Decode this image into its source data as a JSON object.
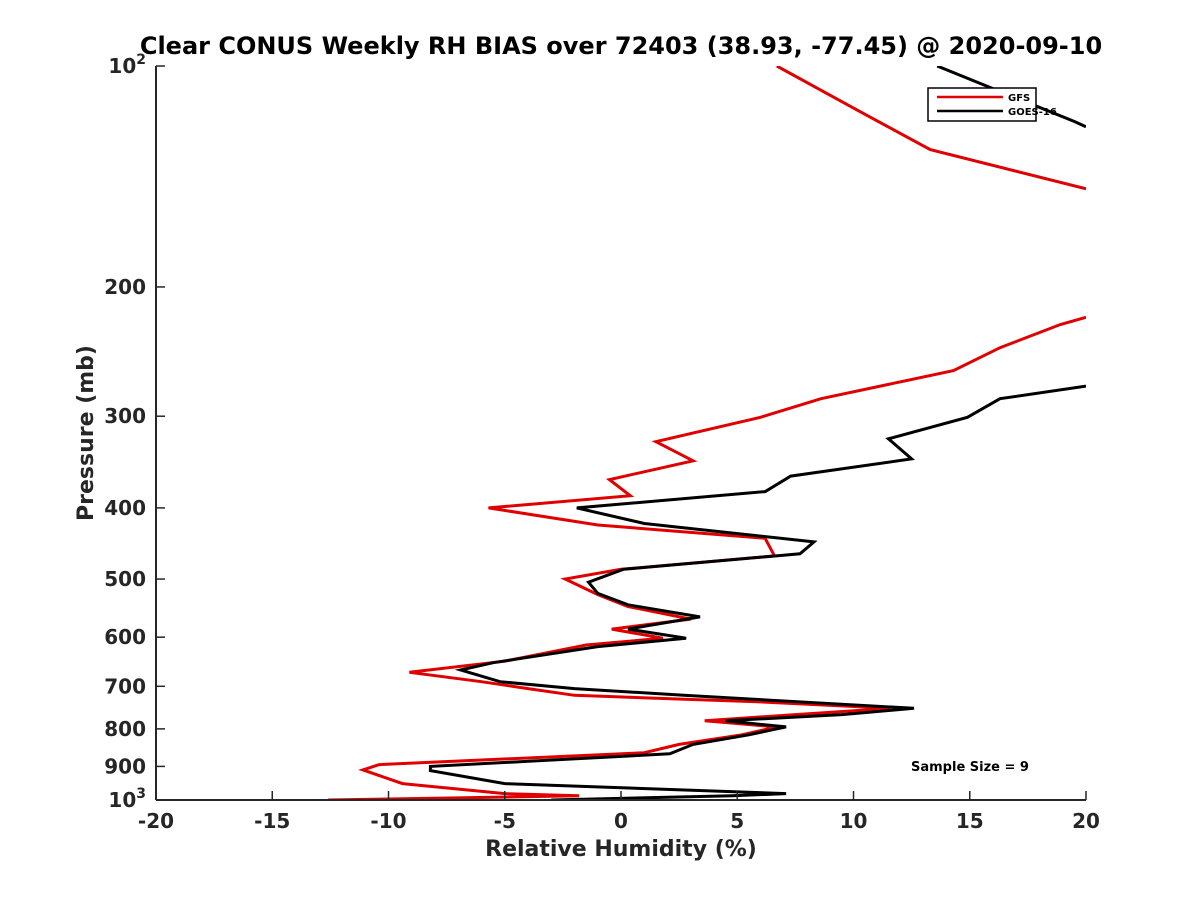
{
  "chart_data": {
    "type": "line",
    "title": "Clear CONUS Weekly RH BIAS over 72403 (38.93, -77.45) @ 2020-09-10",
    "xlabel": "Relative Humidity (%)",
    "ylabel": "Pressure (mb)",
    "xlim": [
      -20,
      20
    ],
    "ylim": [
      1000,
      100
    ],
    "yscale": "log",
    "y_reversed": true,
    "grid": false,
    "legend_position": "top-right",
    "x_ticks": [
      -20,
      -15,
      -10,
      -5,
      0,
      5,
      10,
      15,
      20
    ],
    "x_tick_labels": [
      "-20",
      "-15",
      "-10",
      "-5",
      "0",
      "5",
      "10",
      "15",
      "20"
    ],
    "y_ticks": [
      {
        "value": 100,
        "base": "10",
        "exp": "2"
      },
      {
        "value": 200,
        "label": "200"
      },
      {
        "value": 300,
        "label": "300"
      },
      {
        "value": 400,
        "label": "400"
      },
      {
        "value": 500,
        "label": "500"
      },
      {
        "value": 600,
        "label": "600"
      },
      {
        "value": 700,
        "label": "700"
      },
      {
        "value": 800,
        "label": "800"
      },
      {
        "value": 900,
        "label": "900"
      },
      {
        "value": 1000,
        "base": "10",
        "exp": "3"
      }
    ],
    "annotation": "Sample Size = 9",
    "series": [
      {
        "name": "GFS",
        "color": "#e00000",
        "segments": [
          [
            [
              6.7,
              100
            ],
            [
              10.2,
              115
            ],
            [
              13.3,
              130
            ],
            [
              20,
              147
            ]
          ],
          [
            [
              20,
              220
            ],
            [
              18.9,
              225
            ],
            [
              16.3,
              242
            ],
            [
              14.3,
              260
            ],
            [
              8.6,
              284
            ],
            [
              6.0,
              301
            ],
            [
              1.5,
              325
            ],
            [
              3.1,
              345
            ],
            [
              -0.5,
              366
            ],
            [
              0.4,
              385
            ],
            [
              -5.7,
              400
            ],
            [
              -1.0,
              422
            ],
            [
              6.2,
              440
            ],
            [
              6.6,
              465
            ],
            [
              0,
              485
            ],
            [
              -2.4,
              500
            ],
            [
              -1.0,
              525
            ],
            [
              0.3,
              545
            ],
            [
              3.0,
              567
            ],
            [
              -0.4,
              585
            ],
            [
              1.8,
              602
            ],
            [
              -1.5,
              615
            ],
            [
              -5.0,
              647
            ],
            [
              -9.1,
              670
            ],
            [
              -6.0,
              690
            ],
            [
              -4.0,
              705
            ],
            [
              -2.0,
              720
            ],
            [
              6.0,
              735
            ],
            [
              11.6,
              750
            ],
            [
              7.5,
              765
            ],
            [
              3.6,
              780
            ],
            [
              6.7,
              795
            ],
            [
              5.2,
              815
            ],
            [
              2.5,
              840
            ],
            [
              1.0,
              862
            ],
            [
              -10.4,
              895
            ],
            [
              -11.1,
              910
            ],
            [
              -9.4,
              950
            ],
            [
              -5.0,
              980
            ],
            [
              -1.8,
              987
            ],
            [
              -12.6,
              1000
            ]
          ]
        ]
      },
      {
        "name": "GOES-16",
        "color": "#000000",
        "segments": [
          [
            [
              13.6,
              100
            ],
            [
              16.2,
              108
            ],
            [
              19.5,
              119
            ],
            [
              20,
              121
            ]
          ],
          [
            [
              20,
              273
            ],
            [
              16.3,
              284
            ],
            [
              14.9,
              301
            ],
            [
              11.5,
              322
            ],
            [
              12.5,
              343
            ],
            [
              7.3,
              362
            ],
            [
              6.2,
              380
            ],
            [
              -1.9,
              400
            ],
            [
              1.0,
              420
            ],
            [
              8.3,
              445
            ],
            [
              7.7,
              462
            ],
            [
              0.1,
              485
            ],
            [
              -1.4,
              505
            ],
            [
              -1.0,
              523
            ],
            [
              0.3,
              542
            ],
            [
              3.4,
              563
            ],
            [
              0.3,
              585
            ],
            [
              2.8,
              602
            ],
            [
              -1.0,
              618
            ],
            [
              -5.5,
              650
            ],
            [
              -6.9,
              665
            ],
            [
              -5.2,
              690
            ],
            [
              -2.0,
              705
            ],
            [
              2.7,
              720
            ],
            [
              12.6,
              750
            ],
            [
              9.5,
              765
            ],
            [
              4.5,
              780
            ],
            [
              7.1,
              795
            ],
            [
              5.5,
              815
            ],
            [
              3.1,
              840
            ],
            [
              2.1,
              865
            ],
            [
              -8.2,
              900
            ],
            [
              -8.2,
              912
            ],
            [
              -5.0,
              950
            ],
            [
              7.1,
              980
            ],
            [
              4.8,
              987
            ],
            [
              -3.0,
              1000
            ]
          ]
        ]
      }
    ]
  }
}
